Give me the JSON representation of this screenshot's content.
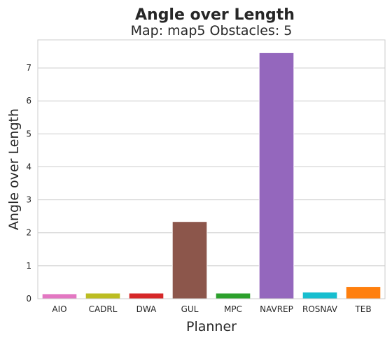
{
  "chart_data": {
    "type": "bar",
    "title": "Angle over Length",
    "subtitle": "Map: map5 Obstacles: 5",
    "xlabel": "Planner",
    "ylabel": "Angle over Length",
    "categories": [
      "AIO",
      "CADRL",
      "DWA",
      "GUL",
      "MPC",
      "NAVREP",
      "ROSNAV",
      "TEB"
    ],
    "values": [
      0.15,
      0.17,
      0.17,
      2.34,
      0.17,
      7.46,
      0.2,
      0.37
    ],
    "colors": [
      "#e377c2",
      "#bcbd22",
      "#d62728",
      "#8c564b",
      "#2ca02c",
      "#9467bd",
      "#17becf",
      "#ff7f0e"
    ],
    "yticks": [
      0,
      1,
      2,
      3,
      4,
      5,
      6,
      7
    ],
    "ylim": [
      0,
      7.85
    ],
    "grid": "horizontal",
    "legend": "none"
  }
}
